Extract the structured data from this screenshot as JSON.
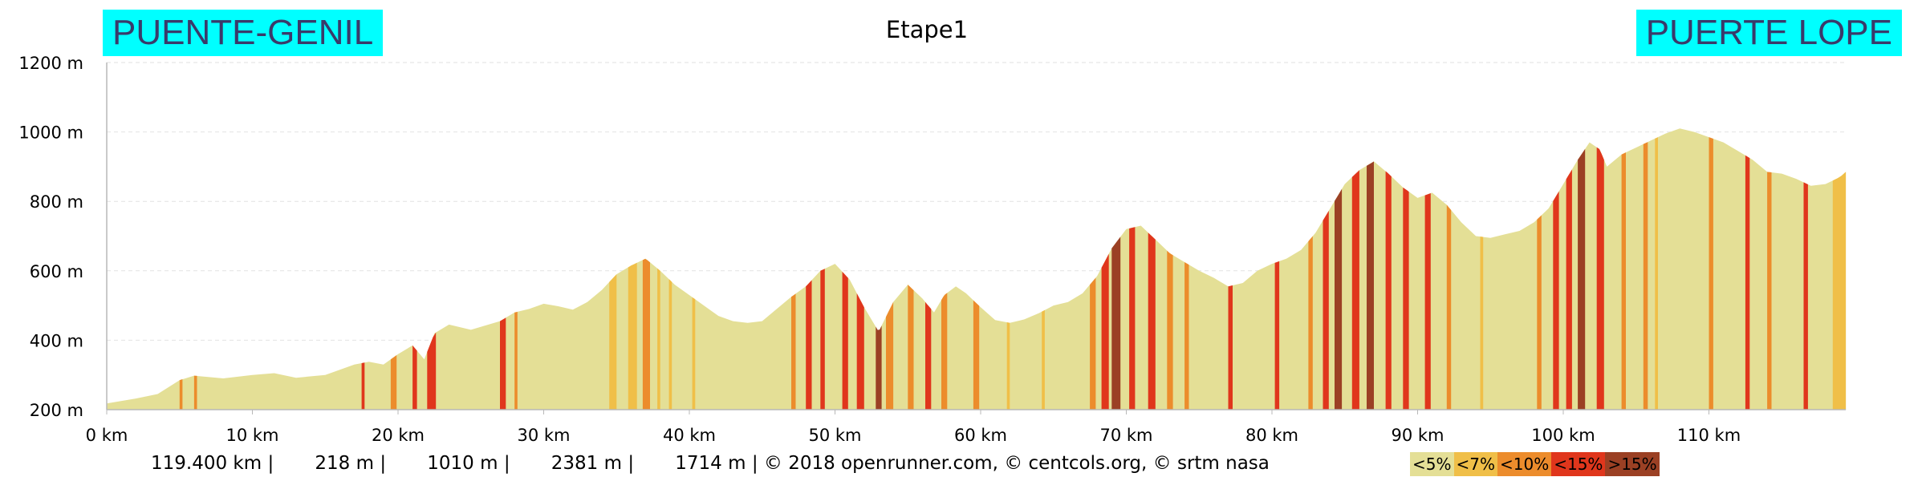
{
  "header": {
    "start_place": "PUENTE-GENIL",
    "end_place": "PUERTE LOPE",
    "title": "Etape1"
  },
  "stats": {
    "distance": "119.400 km",
    "min_altitude": "218 m",
    "max_altitude": "1010 m",
    "elevation_gain": "2381 m",
    "elevation_loss": "1714 m",
    "credits": "© 2018 openrunner.com, © centcols.org, © srtm nasa"
  },
  "colors": {
    "place_box": "#00ffff",
    "place_text": "#3a3a6a",
    "lt5": "#e4df96",
    "lt7": "#f0bf48",
    "lt10": "#ec8c2c",
    "lt15": "#e0361c",
    "gt15": "#9b4024"
  },
  "chart_data": {
    "type": "area",
    "title": "Etape1",
    "xlabel": "",
    "ylabel": "",
    "x_unit": "km",
    "y_unit": "m",
    "xlim": [
      0,
      119.4
    ],
    "ylim": [
      200,
      1200
    ],
    "xticks": [
      "0 km",
      "10 km",
      "20 km",
      "30 km",
      "40 km",
      "50 km",
      "60 km",
      "70 km",
      "80 km",
      "90 km",
      "100 km",
      "110 km"
    ],
    "yticks": [
      "200 m",
      "400 m",
      "600 m",
      "800 m",
      "1000 m",
      "1200 m"
    ],
    "grid": true,
    "legend": {
      "placement": "bottom-right",
      "items": [
        {
          "label": "<5%",
          "color_key": "lt5"
        },
        {
          "label": "<7%",
          "color_key": "lt7"
        },
        {
          "label": "<10%",
          "color_key": "lt10"
        },
        {
          "label": "<15%",
          "color_key": "lt15"
        },
        {
          "label": ">15%",
          "color_key": "gt15"
        }
      ]
    },
    "profile": [
      [
        0,
        218
      ],
      [
        2,
        232
      ],
      [
        3.5,
        245
      ],
      [
        5,
        285
      ],
      [
        6,
        298
      ],
      [
        8,
        290
      ],
      [
        10,
        300
      ],
      [
        11.5,
        305
      ],
      [
        13,
        292
      ],
      [
        15,
        300
      ],
      [
        17,
        330
      ],
      [
        18,
        338
      ],
      [
        19,
        330
      ],
      [
        20,
        360
      ],
      [
        21,
        385
      ],
      [
        21.8,
        345
      ],
      [
        22.5,
        420
      ],
      [
        23.5,
        445
      ],
      [
        25,
        430
      ],
      [
        27,
        455
      ],
      [
        28,
        480
      ],
      [
        29,
        490
      ],
      [
        30,
        505
      ],
      [
        31,
        498
      ],
      [
        32,
        488
      ],
      [
        33,
        510
      ],
      [
        34,
        545
      ],
      [
        35,
        590
      ],
      [
        36,
        615
      ],
      [
        37,
        635
      ],
      [
        38,
        600
      ],
      [
        39,
        560
      ],
      [
        40,
        530
      ],
      [
        41,
        500
      ],
      [
        42,
        470
      ],
      [
        43,
        455
      ],
      [
        44,
        450
      ],
      [
        45,
        455
      ],
      [
        46,
        490
      ],
      [
        47,
        525
      ],
      [
        48,
        555
      ],
      [
        49,
        600
      ],
      [
        50,
        620
      ],
      [
        51,
        575
      ],
      [
        52,
        495
      ],
      [
        53,
        425
      ],
      [
        54,
        510
      ],
      [
        55,
        560
      ],
      [
        56,
        520
      ],
      [
        56.8,
        480
      ],
      [
        57.5,
        530
      ],
      [
        58.3,
        555
      ],
      [
        59,
        535
      ],
      [
        60,
        495
      ],
      [
        61,
        458
      ],
      [
        62,
        450
      ],
      [
        63,
        460
      ],
      [
        64,
        478
      ],
      [
        65,
        500
      ],
      [
        66,
        510
      ],
      [
        67,
        535
      ],
      [
        68,
        585
      ],
      [
        69,
        665
      ],
      [
        70,
        720
      ],
      [
        71,
        730
      ],
      [
        72,
        690
      ],
      [
        73,
        650
      ],
      [
        74,
        625
      ],
      [
        75,
        600
      ],
      [
        76,
        580
      ],
      [
        77,
        555
      ],
      [
        78,
        565
      ],
      [
        79,
        600
      ],
      [
        80,
        620
      ],
      [
        81,
        635
      ],
      [
        82,
        660
      ],
      [
        83,
        710
      ],
      [
        84,
        780
      ],
      [
        85,
        850
      ],
      [
        86,
        890
      ],
      [
        87,
        915
      ],
      [
        88,
        880
      ],
      [
        89,
        840
      ],
      [
        90,
        810
      ],
      [
        91,
        825
      ],
      [
        92,
        790
      ],
      [
        93,
        740
      ],
      [
        94,
        700
      ],
      [
        95,
        695
      ],
      [
        96,
        705
      ],
      [
        97,
        715
      ],
      [
        98,
        740
      ],
      [
        99,
        780
      ],
      [
        100,
        850
      ],
      [
        101,
        920
      ],
      [
        101.8,
        970
      ],
      [
        102.5,
        950
      ],
      [
        103,
        900
      ],
      [
        104,
        935
      ],
      [
        105,
        955
      ],
      [
        106,
        975
      ],
      [
        107,
        995
      ],
      [
        108,
        1010
      ],
      [
        109,
        1000
      ],
      [
        110,
        985
      ],
      [
        111,
        970
      ],
      [
        112,
        945
      ],
      [
        113,
        920
      ],
      [
        114,
        885
      ],
      [
        115,
        880
      ],
      [
        116,
        865
      ],
      [
        117,
        845
      ],
      [
        118,
        850
      ],
      [
        119,
        870
      ],
      [
        119.4,
        885
      ]
    ],
    "gradient_bands": [
      {
        "from": 5.0,
        "to": 5.2,
        "class": "lt10"
      },
      {
        "from": 6.0,
        "to": 6.2,
        "class": "lt10"
      },
      {
        "from": 17.5,
        "to": 17.7,
        "class": "lt15"
      },
      {
        "from": 19.5,
        "to": 19.9,
        "class": "lt10"
      },
      {
        "from": 21.0,
        "to": 21.3,
        "class": "lt15"
      },
      {
        "from": 22.0,
        "to": 22.6,
        "class": "lt15"
      },
      {
        "from": 27.0,
        "to": 27.4,
        "class": "lt15"
      },
      {
        "from": 28.0,
        "to": 28.2,
        "class": "lt10"
      },
      {
        "from": 34.5,
        "to": 35.0,
        "class": "lt7"
      },
      {
        "from": 35.8,
        "to": 36.4,
        "class": "lt7"
      },
      {
        "from": 36.8,
        "to": 37.3,
        "class": "lt10"
      },
      {
        "from": 37.8,
        "to": 38.0,
        "class": "lt7"
      },
      {
        "from": 38.6,
        "to": 38.8,
        "class": "lt7"
      },
      {
        "from": 40.2,
        "to": 40.4,
        "class": "lt7"
      },
      {
        "from": 47.0,
        "to": 47.3,
        "class": "lt10"
      },
      {
        "from": 48.0,
        "to": 48.4,
        "class": "lt15"
      },
      {
        "from": 49.0,
        "to": 49.3,
        "class": "lt15"
      },
      {
        "from": 50.5,
        "to": 50.9,
        "class": "lt15"
      },
      {
        "from": 51.5,
        "to": 52.0,
        "class": "lt15"
      },
      {
        "from": 52.8,
        "to": 53.2,
        "class": "gt15"
      },
      {
        "from": 53.5,
        "to": 54.0,
        "class": "lt10"
      },
      {
        "from": 55.0,
        "to": 55.4,
        "class": "lt10"
      },
      {
        "from": 56.2,
        "to": 56.6,
        "class": "lt15"
      },
      {
        "from": 57.3,
        "to": 57.7,
        "class": "lt10"
      },
      {
        "from": 59.5,
        "to": 59.9,
        "class": "lt10"
      },
      {
        "from": 61.8,
        "to": 62.0,
        "class": "lt7"
      },
      {
        "from": 64.2,
        "to": 64.4,
        "class": "lt7"
      },
      {
        "from": 67.5,
        "to": 67.9,
        "class": "lt10"
      },
      {
        "from": 68.3,
        "to": 68.8,
        "class": "lt15"
      },
      {
        "from": 69.0,
        "to": 69.6,
        "class": "gt15"
      },
      {
        "from": 70.2,
        "to": 70.6,
        "class": "lt15"
      },
      {
        "from": 71.5,
        "to": 72.0,
        "class": "lt15"
      },
      {
        "from": 72.8,
        "to": 73.2,
        "class": "lt10"
      },
      {
        "from": 74.0,
        "to": 74.3,
        "class": "lt10"
      },
      {
        "from": 77.0,
        "to": 77.3,
        "class": "lt15"
      },
      {
        "from": 80.2,
        "to": 80.5,
        "class": "lt15"
      },
      {
        "from": 82.5,
        "to": 82.8,
        "class": "lt10"
      },
      {
        "from": 83.5,
        "to": 83.9,
        "class": "lt15"
      },
      {
        "from": 84.3,
        "to": 84.8,
        "class": "gt15"
      },
      {
        "from": 85.5,
        "to": 86.0,
        "class": "lt15"
      },
      {
        "from": 86.5,
        "to": 87.0,
        "class": "gt15"
      },
      {
        "from": 87.8,
        "to": 88.2,
        "class": "lt15"
      },
      {
        "from": 89.0,
        "to": 89.4,
        "class": "lt15"
      },
      {
        "from": 90.5,
        "to": 90.9,
        "class": "lt15"
      },
      {
        "from": 92.0,
        "to": 92.3,
        "class": "lt10"
      },
      {
        "from": 94.3,
        "to": 94.5,
        "class": "lt7"
      },
      {
        "from": 98.2,
        "to": 98.5,
        "class": "lt10"
      },
      {
        "from": 99.3,
        "to": 99.7,
        "class": "lt15"
      },
      {
        "from": 100.2,
        "to": 100.6,
        "class": "lt15"
      },
      {
        "from": 101.0,
        "to": 101.5,
        "class": "gt15"
      },
      {
        "from": 102.3,
        "to": 102.8,
        "class": "lt15"
      },
      {
        "from": 104.0,
        "to": 104.3,
        "class": "lt10"
      },
      {
        "from": 105.5,
        "to": 105.8,
        "class": "lt10"
      },
      {
        "from": 106.3,
        "to": 106.5,
        "class": "lt7"
      },
      {
        "from": 110.0,
        "to": 110.3,
        "class": "lt10"
      },
      {
        "from": 112.5,
        "to": 112.8,
        "class": "lt15"
      },
      {
        "from": 114.0,
        "to": 114.3,
        "class": "lt10"
      },
      {
        "from": 116.5,
        "to": 116.8,
        "class": "lt15"
      },
      {
        "from": 118.5,
        "to": 119.4,
        "class": "lt7"
      }
    ]
  }
}
